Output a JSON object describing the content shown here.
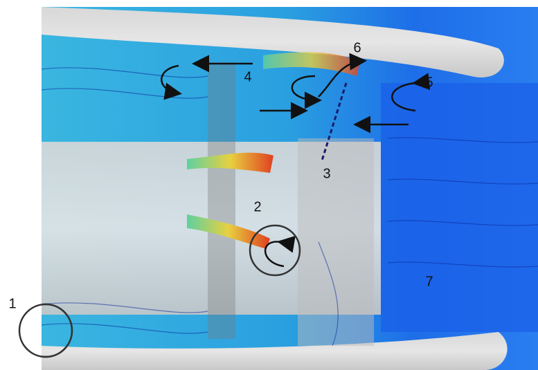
{
  "annotations": {
    "labels": [
      "1",
      "2",
      "3",
      "4",
      "5",
      "6",
      "7"
    ]
  }
}
